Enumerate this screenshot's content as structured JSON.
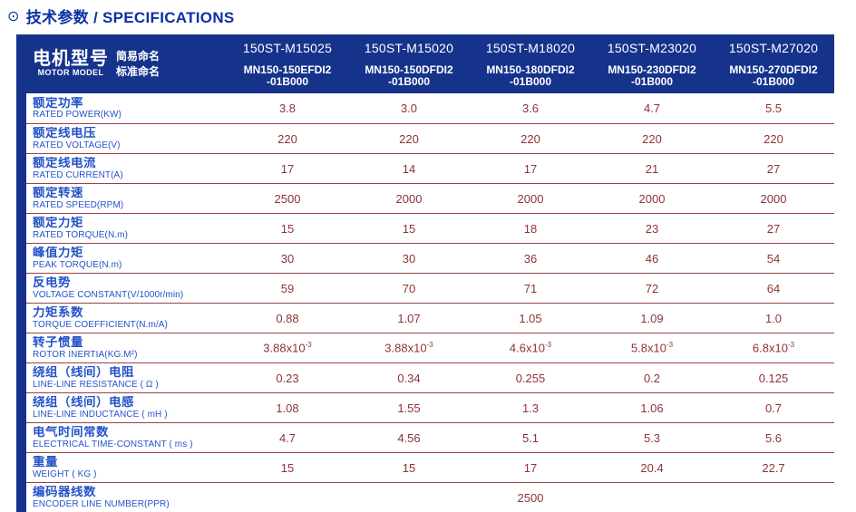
{
  "page": {
    "title_icon": "⊙",
    "title": "技术参数 / SPECIFICATIONS"
  },
  "colors": {
    "header_bg": "#16338c",
    "title_text": "#0c31a5",
    "label_text": "#2453c9",
    "value_text": "#8e3338",
    "divider": "#9a4347"
  },
  "table": {
    "header": {
      "row_label_cn": "电机型号",
      "row_label_en": "MOTOR MODEL",
      "simple_name_label": "简易命名",
      "standard_name_label": "标准命名",
      "models": [
        {
          "simple": "150ST-M15025",
          "standard_line1": "MN150-150EFDI2",
          "standard_line2": "-01B000"
        },
        {
          "simple": "150ST-M15020",
          "standard_line1": "MN150-150DFDI2",
          "standard_line2": "-01B000"
        },
        {
          "simple": "150ST-M18020",
          "standard_line1": "MN150-180DFDI2",
          "standard_line2": "-01B000"
        },
        {
          "simple": "150ST-M23020",
          "standard_line1": "MN150-230DFDI2",
          "standard_line2": "-01B000"
        },
        {
          "simple": "150ST-M27020",
          "standard_line1": "MN150-270DFDI2",
          "standard_line2": "-01B000"
        }
      ]
    },
    "rows": [
      {
        "cn": "额定功率",
        "en": "RATED POWER(KW)",
        "values": [
          "3.8",
          "3.0",
          "3.6",
          "4.7",
          "5.5"
        ]
      },
      {
        "cn": "额定线电压",
        "en": "RATED VOLTAGE(V)",
        "values": [
          "220",
          "220",
          "220",
          "220",
          "220"
        ]
      },
      {
        "cn": "额定线电流",
        "en": "RATED CURRENT(A)",
        "values": [
          "17",
          "14",
          "17",
          "21",
          "27"
        ]
      },
      {
        "cn": "额定转速",
        "en": "RATED SPEED(RPM)",
        "values": [
          "2500",
          "2000",
          "2000",
          "2000",
          "2000"
        ]
      },
      {
        "cn": "额定力矩",
        "en": "RATED TORQUE(N.m)",
        "values": [
          "15",
          "15",
          "18",
          "23",
          "27"
        ]
      },
      {
        "cn": "峰值力矩",
        "en": "PEAK TORQUE(N.m)",
        "values": [
          "30",
          "30",
          "36",
          "46",
          "54"
        ]
      },
      {
        "cn": "反电势",
        "en": "VOLTAGE CONSTANT(V/1000r/min)",
        "values": [
          "59",
          "70",
          "71",
          "72",
          "64"
        ]
      },
      {
        "cn": "力矩系数",
        "en": "TORQUE COEFFICIENT(N.m/A)",
        "values": [
          "0.88",
          "1.07",
          "1.05",
          "1.09",
          "1.0"
        ]
      },
      {
        "cn": "转子惯量",
        "en": "ROTOR INERTIA(KG.M²)",
        "values_sci": [
          {
            "base": "3.88x10",
            "sup": "-3"
          },
          {
            "base": "3.88x10",
            "sup": "-3"
          },
          {
            "base": "4.6x10",
            "sup": "-3"
          },
          {
            "base": "5.8x10",
            "sup": "-3"
          },
          {
            "base": "6.8x10",
            "sup": "-3"
          }
        ]
      },
      {
        "cn": "绕组（线间）电阻",
        "en": "LINE-LINE RESISTANCE ( Ω )",
        "values": [
          "0.23",
          "0.34",
          "0.255",
          "0.2",
          "0.125"
        ]
      },
      {
        "cn": "绕组（线间）电感",
        "en": "LINE-LINE INDUCTANCE ( mH )",
        "values": [
          "1.08",
          "1.55",
          "1.3",
          "1.06",
          "0.7"
        ]
      },
      {
        "cn": "电气时间常数",
        "en": "ELECTRICAL TIME-CONSTANT ( ms )",
        "values": [
          "4.7",
          "4.56",
          "5.1",
          "5.3",
          "5.6"
        ]
      },
      {
        "cn": "重量",
        "en": "WEIGHT ( KG )",
        "values": [
          "15",
          "15",
          "17",
          "20.4",
          "22.7"
        ]
      },
      {
        "cn": "编码器线数",
        "en": "ENCODER LINE NUMBER(PPR)",
        "value_span": "2500"
      }
    ]
  }
}
